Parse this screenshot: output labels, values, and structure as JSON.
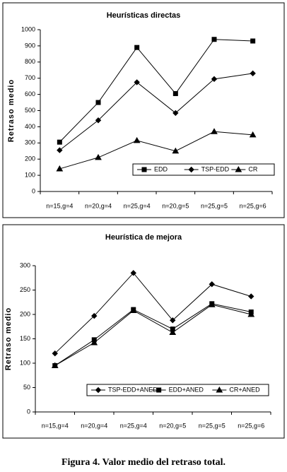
{
  "chart_data": [
    {
      "type": "line",
      "title": "Heurísticas directas",
      "y_label": "Retraso medio",
      "categories": [
        "n=15,g=4",
        "n=20,g=4",
        "n=25,g=4",
        "n=20,g=5",
        "n=25,g=5",
        "n=25,g=6"
      ],
      "series": [
        {
          "name": "EDD",
          "color": "#000000",
          "marker": "square",
          "values": [
            305,
            550,
            890,
            605,
            940,
            930
          ]
        },
        {
          "name": "TSP-EDD",
          "color": "#000000",
          "marker": "diamond",
          "values": [
            255,
            440,
            675,
            485,
            695,
            730
          ]
        },
        {
          "name": "CR",
          "color": "#000000",
          "marker": "triangle",
          "values": [
            140,
            210,
            315,
            250,
            370,
            350
          ]
        }
      ],
      "ylim": [
        0,
        1000
      ],
      "yticks": [
        0,
        100,
        200,
        300,
        400,
        500,
        600,
        700,
        800,
        900,
        1000
      ],
      "legend": "bottom-right"
    },
    {
      "type": "line",
      "title": "Heurística de mejora",
      "y_label": "Retraso medio",
      "categories": [
        "n=15,g=4",
        "n=20,g=4",
        "n=25,g=4",
        "n=20,g=5",
        "n=25,g=5",
        "n=25,g=6"
      ],
      "series": [
        {
          "name": "TSP-EDD+ANED",
          "color": "#000000",
          "marker": "diamond",
          "values": [
            120,
            197,
            285,
            188,
            262,
            237
          ]
        },
        {
          "name": "EDD+ANED",
          "color": "#000000",
          "marker": "square",
          "values": [
            95,
            148,
            210,
            170,
            222,
            205
          ]
        },
        {
          "name": "CR+ANED",
          "color": "#000000",
          "marker": "triangle",
          "values": [
            95,
            142,
            208,
            163,
            220,
            200
          ]
        }
      ],
      "ylim": [
        0,
        300
      ],
      "yticks": [
        0,
        50,
        100,
        150,
        200,
        250,
        300
      ],
      "legend": "bottom-right"
    }
  ],
  "caption": "Figura 4. Valor medio del retraso total."
}
